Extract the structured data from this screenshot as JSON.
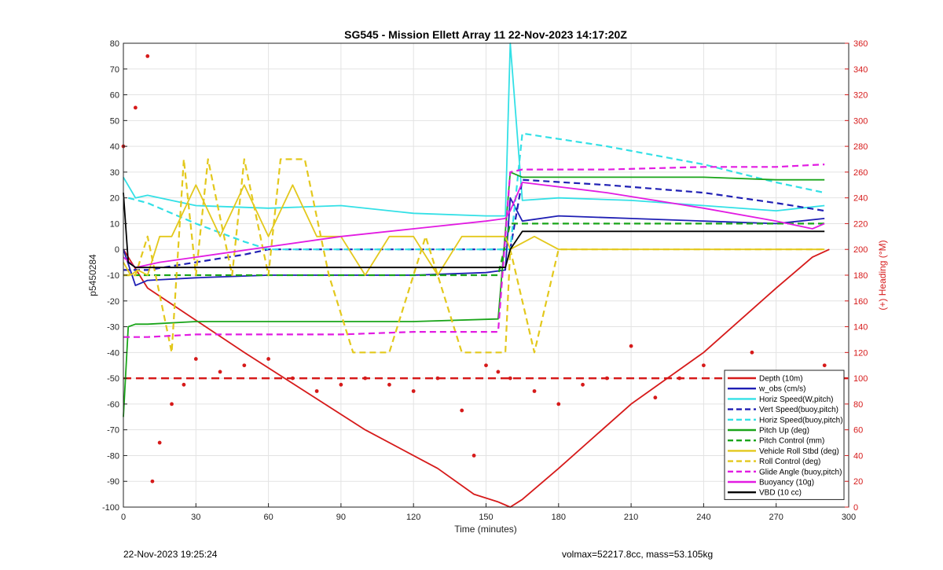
{
  "chart_data": {
    "type": "line",
    "title": "SG545 - Mission Ellett Array 11 22-Nov-2023 14:17:20Z",
    "xlabel": "Time (minutes)",
    "ylabel_left": "p5450284",
    "ylabel_right": "(+) Heading (°M)",
    "xlim": [
      0,
      300
    ],
    "ylim_left": [
      -100,
      80
    ],
    "ylim_right": [
      0,
      360
    ],
    "x_ticks": [
      0,
      30,
      60,
      90,
      120,
      150,
      180,
      210,
      240,
      270,
      300
    ],
    "y_left_ticks": [
      -100,
      -90,
      -80,
      -70,
      -60,
      -50,
      -40,
      -30,
      -20,
      -10,
      0,
      10,
      20,
      30,
      40,
      50,
      60,
      70,
      80
    ],
    "y_right_ticks": [
      0,
      20,
      40,
      60,
      80,
      100,
      120,
      140,
      160,
      180,
      200,
      220,
      240,
      260,
      280,
      300,
      320,
      340,
      360
    ],
    "grid": true,
    "legend_position": "bottom-right",
    "series": [
      {
        "name": "Depth (10m)",
        "color": "#d61a1a",
        "style": "solid",
        "x": [
          0,
          10,
          50,
          100,
          130,
          145,
          155,
          160,
          165,
          180,
          210,
          240,
          270,
          285,
          292
        ],
        "y": [
          0,
          -15,
          -40,
          -70,
          -85,
          -95,
          -98,
          -100,
          -97,
          -85,
          -60,
          -40,
          -15,
          -3,
          0
        ]
      },
      {
        "name": "w_obs (cm/s)",
        "color": "#1f1fb4",
        "style": "solid",
        "x": [
          0,
          5,
          10,
          30,
          60,
          90,
          120,
          150,
          158,
          160,
          165,
          180,
          210,
          240,
          270,
          290
        ],
        "y": [
          0,
          -14,
          -12,
          -11,
          -10,
          -10,
          -10,
          -9,
          -8,
          20,
          11,
          13,
          12,
          11,
          10,
          12
        ]
      },
      {
        "name": "Horiz Speed(W,pitch)",
        "color": "#33e0e6",
        "style": "solid",
        "x": [
          0,
          5,
          10,
          30,
          60,
          90,
          120,
          150,
          158,
          160,
          165,
          180,
          210,
          240,
          270,
          290
        ],
        "y": [
          28,
          20,
          21,
          17,
          16,
          17,
          14,
          13,
          13,
          80,
          19,
          20,
          19,
          17,
          15,
          17
        ]
      },
      {
        "name": "Vert Speed(buoy,pitch)",
        "color": "#1f1fb4",
        "style": "dashed",
        "x": [
          0,
          10,
          30,
          50,
          60,
          90,
          120,
          155,
          160,
          165,
          200,
          240,
          270,
          290
        ],
        "y": [
          -8,
          -8,
          -5,
          -2,
          0,
          0,
          0,
          0,
          0,
          27,
          25,
          22,
          18,
          15
        ]
      },
      {
        "name": "Horiz Speed(buoy,pitch)",
        "color": "#33e0e6",
        "style": "dashed",
        "x": [
          2,
          10,
          30,
          50,
          60,
          90,
          120,
          155,
          160,
          165,
          200,
          240,
          270,
          290
        ],
        "y": [
          20,
          18,
          10,
          3,
          0,
          0,
          0,
          0,
          0,
          45,
          40,
          33,
          26,
          22
        ]
      },
      {
        "name": "Pitch Up (deg)",
        "color": "#1aa51a",
        "style": "solid",
        "x": [
          0,
          2,
          5,
          10,
          30,
          60,
          90,
          120,
          155,
          160,
          165,
          200,
          240,
          270,
          290
        ],
        "y": [
          -65,
          -30,
          -29,
          -29,
          -28,
          -28,
          -28,
          -28,
          -27,
          30,
          28,
          28,
          28,
          27,
          27
        ]
      },
      {
        "name": "Pitch Control (mm)",
        "color": "#1aa51a",
        "style": "dashed",
        "x": [
          0,
          10,
          30,
          60,
          90,
          120,
          155,
          160,
          200,
          240,
          270,
          290
        ],
        "y": [
          -10,
          -10,
          -10,
          -10,
          -10,
          -10,
          -10,
          10,
          10,
          10,
          10,
          10
        ]
      },
      {
        "name": "Vehicle Roll Stbd (deg)",
        "color": "#e3c81c",
        "style": "solid",
        "x": [
          0,
          3,
          6,
          10,
          15,
          20,
          30,
          40,
          50,
          60,
          70,
          80,
          90,
          100,
          110,
          120,
          130,
          140,
          150,
          158,
          160,
          170,
          180,
          200,
          220,
          240,
          260,
          280,
          290
        ],
        "y": [
          -5,
          -10,
          -8,
          -10,
          5,
          5,
          25,
          5,
          25,
          5,
          25,
          5,
          5,
          -10,
          5,
          5,
          -10,
          5,
          5,
          5,
          0,
          5,
          0,
          0,
          0,
          0,
          0,
          0,
          0
        ]
      },
      {
        "name": "Roll Control (deg)",
        "color": "#e3c81c",
        "style": "dashed",
        "x": [
          0,
          5,
          10,
          20,
          25,
          30,
          35,
          45,
          50,
          60,
          65,
          75,
          85,
          95,
          110,
          125,
          140,
          150,
          158,
          160,
          170,
          180,
          200,
          220,
          240,
          260,
          280,
          290
        ],
        "y": [
          -10,
          -10,
          5,
          -40,
          35,
          -10,
          35,
          -10,
          35,
          -10,
          35,
          35,
          -10,
          -40,
          -40,
          5,
          -40,
          -40,
          -40,
          0,
          -40,
          0,
          0,
          0,
          0,
          0,
          0,
          0
        ]
      },
      {
        "name": "Glide Angle (buoy,pitch)",
        "color": "#e21ce2",
        "style": "dashed",
        "x": [
          0,
          10,
          30,
          60,
          90,
          120,
          155,
          160,
          165,
          200,
          240,
          270,
          290
        ],
        "y": [
          -34,
          -34,
          -33,
          -33,
          -33,
          -32,
          -32,
          30,
          31,
          31,
          32,
          32,
          33
        ]
      },
      {
        "name": "Buoyancy (10g)",
        "color": "#e21ce2",
        "style": "solid",
        "x": [
          0,
          5,
          15,
          30,
          60,
          90,
          120,
          150,
          158,
          160,
          165,
          200,
          240,
          270,
          285,
          290
        ],
        "y": [
          -3,
          -7,
          -5,
          -3,
          1,
          5,
          8,
          11,
          12,
          15,
          26,
          22,
          16,
          11,
          8,
          10
        ]
      },
      {
        "name": "VBD (10 cc)",
        "color": "#000000",
        "style": "solid",
        "x": [
          0,
          2,
          5,
          10,
          30,
          60,
          90,
          120,
          155,
          158,
          160,
          165,
          200,
          240,
          270,
          290
        ],
        "y": [
          22,
          -5,
          -7,
          -7,
          -7,
          -7,
          -7,
          -7,
          -7,
          -7,
          0,
          7,
          7,
          7,
          7,
          7
        ]
      },
      {
        "name": "Heading",
        "axis": "right",
        "color": "#d61a1a",
        "style": "markers",
        "x": [
          0,
          5,
          10,
          12,
          15,
          20,
          25,
          30,
          40,
          50,
          60,
          70,
          80,
          90,
          100,
          110,
          120,
          130,
          140,
          145,
          150,
          155,
          160,
          170,
          180,
          190,
          200,
          210,
          220,
          230,
          240,
          250,
          260,
          270,
          280,
          290
        ],
        "y": [
          280,
          310,
          350,
          20,
          50,
          80,
          95,
          115,
          105,
          110,
          115,
          100,
          90,
          95,
          100,
          95,
          90,
          100,
          75,
          40,
          110,
          105,
          100,
          90,
          80,
          95,
          100,
          125,
          85,
          100,
          110,
          90,
          120,
          95,
          100,
          110
        ]
      }
    ]
  },
  "legend": [
    {
      "label": "Depth (10m)",
      "color": "#d61a1a",
      "style": "solid"
    },
    {
      "label": "w_obs (cm/s)",
      "color": "#1f1fb4",
      "style": "solid"
    },
    {
      "label": "Horiz Speed(W,pitch)",
      "color": "#33e0e6",
      "style": "solid"
    },
    {
      "label": "Vert Speed(buoy,pitch)",
      "color": "#1f1fb4",
      "style": "dashed"
    },
    {
      "label": "Horiz Speed(buoy,pitch)",
      "color": "#33e0e6",
      "style": "dashed"
    },
    {
      "label": "Pitch Up (deg)",
      "color": "#1aa51a",
      "style": "solid"
    },
    {
      "label": "Pitch Control (mm)",
      "color": "#1aa51a",
      "style": "dashed"
    },
    {
      "label": "Vehicle Roll Stbd (deg)",
      "color": "#e3c81c",
      "style": "solid"
    },
    {
      "label": "Roll Control (deg)",
      "color": "#e3c81c",
      "style": "dashed"
    },
    {
      "label": "Glide Angle (buoy,pitch)",
      "color": "#e21ce2",
      "style": "dashed"
    },
    {
      "label": "Buoyancy (10g)",
      "color": "#e21ce2",
      "style": "solid"
    },
    {
      "label": "VBD (10 cc)",
      "color": "#000000",
      "style": "solid"
    }
  ],
  "reference_line": {
    "y": -50,
    "color": "#d61a1a",
    "style": "dashed"
  },
  "footer": {
    "left": "22-Nov-2023 19:25:24",
    "right": "volmax=52217.8cc, mass=53.105kg"
  }
}
